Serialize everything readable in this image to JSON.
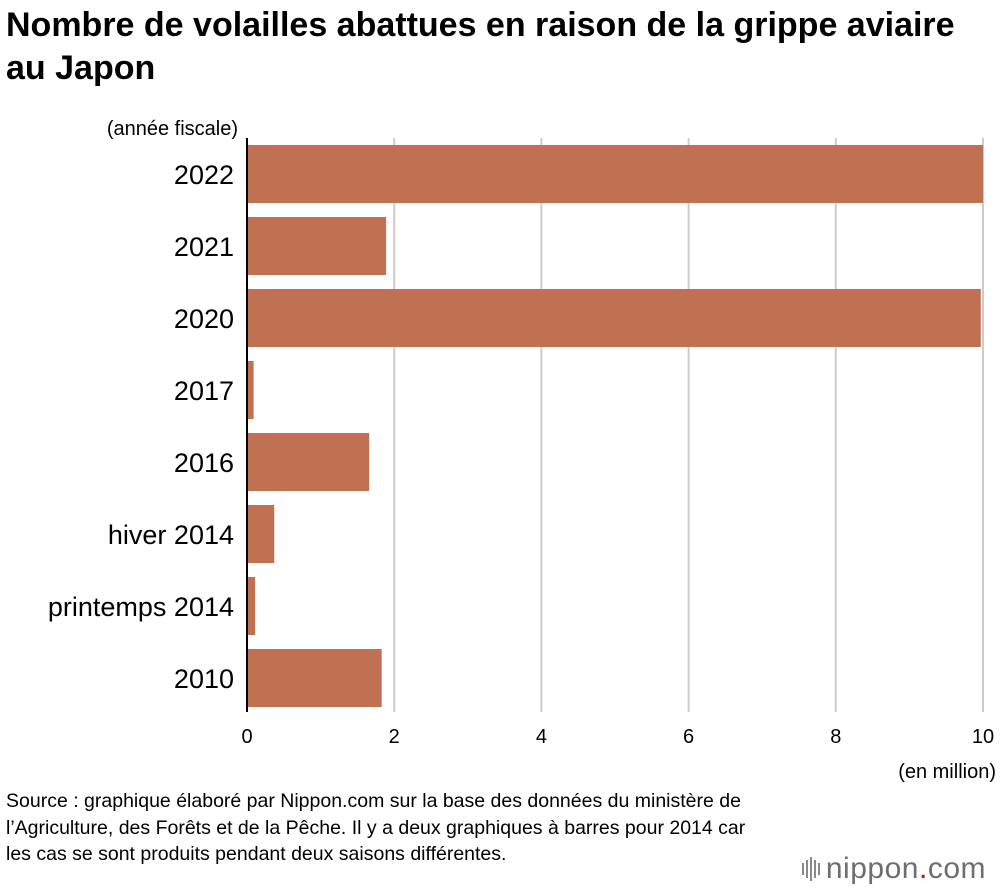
{
  "title": "Nombre de volailles abattues en raison de la grippe aviaire au Japon",
  "source": "Source : graphique élaboré par Nippon.com sur la base des données du ministère de l’Agriculture, des Forêts et de la Pêche. Il y a deux graphiques à barres pour 2014 car les cas se sont produits pendant deux saisons différentes.",
  "logo": {
    "name": "nippon",
    "dot": ".",
    "suffix": "com"
  },
  "colors": {
    "bar": "#bf7151",
    "grid": "#cccccc",
    "axis": "#000000",
    "logo_dot": "#d7000f"
  },
  "chart_data": {
    "type": "bar",
    "orientation": "horizontal",
    "title": "Nombre de volailles abattues en raison de la grippe aviaire au Japon",
    "ylabel": "(année fiscale)",
    "xlabel": "(en million)",
    "categories": [
      "2022",
      "2021",
      "2020",
      "2017",
      "2016",
      "hiver 2014",
      "printemps 2014",
      "2010"
    ],
    "values": [
      10.0,
      1.89,
      9.97,
      0.09,
      1.66,
      0.37,
      0.11,
      1.83
    ],
    "xlim": [
      0,
      10
    ],
    "xticks": [
      0,
      2,
      4,
      6,
      8,
      10
    ],
    "grid": "vertical",
    "legend": "none"
  }
}
